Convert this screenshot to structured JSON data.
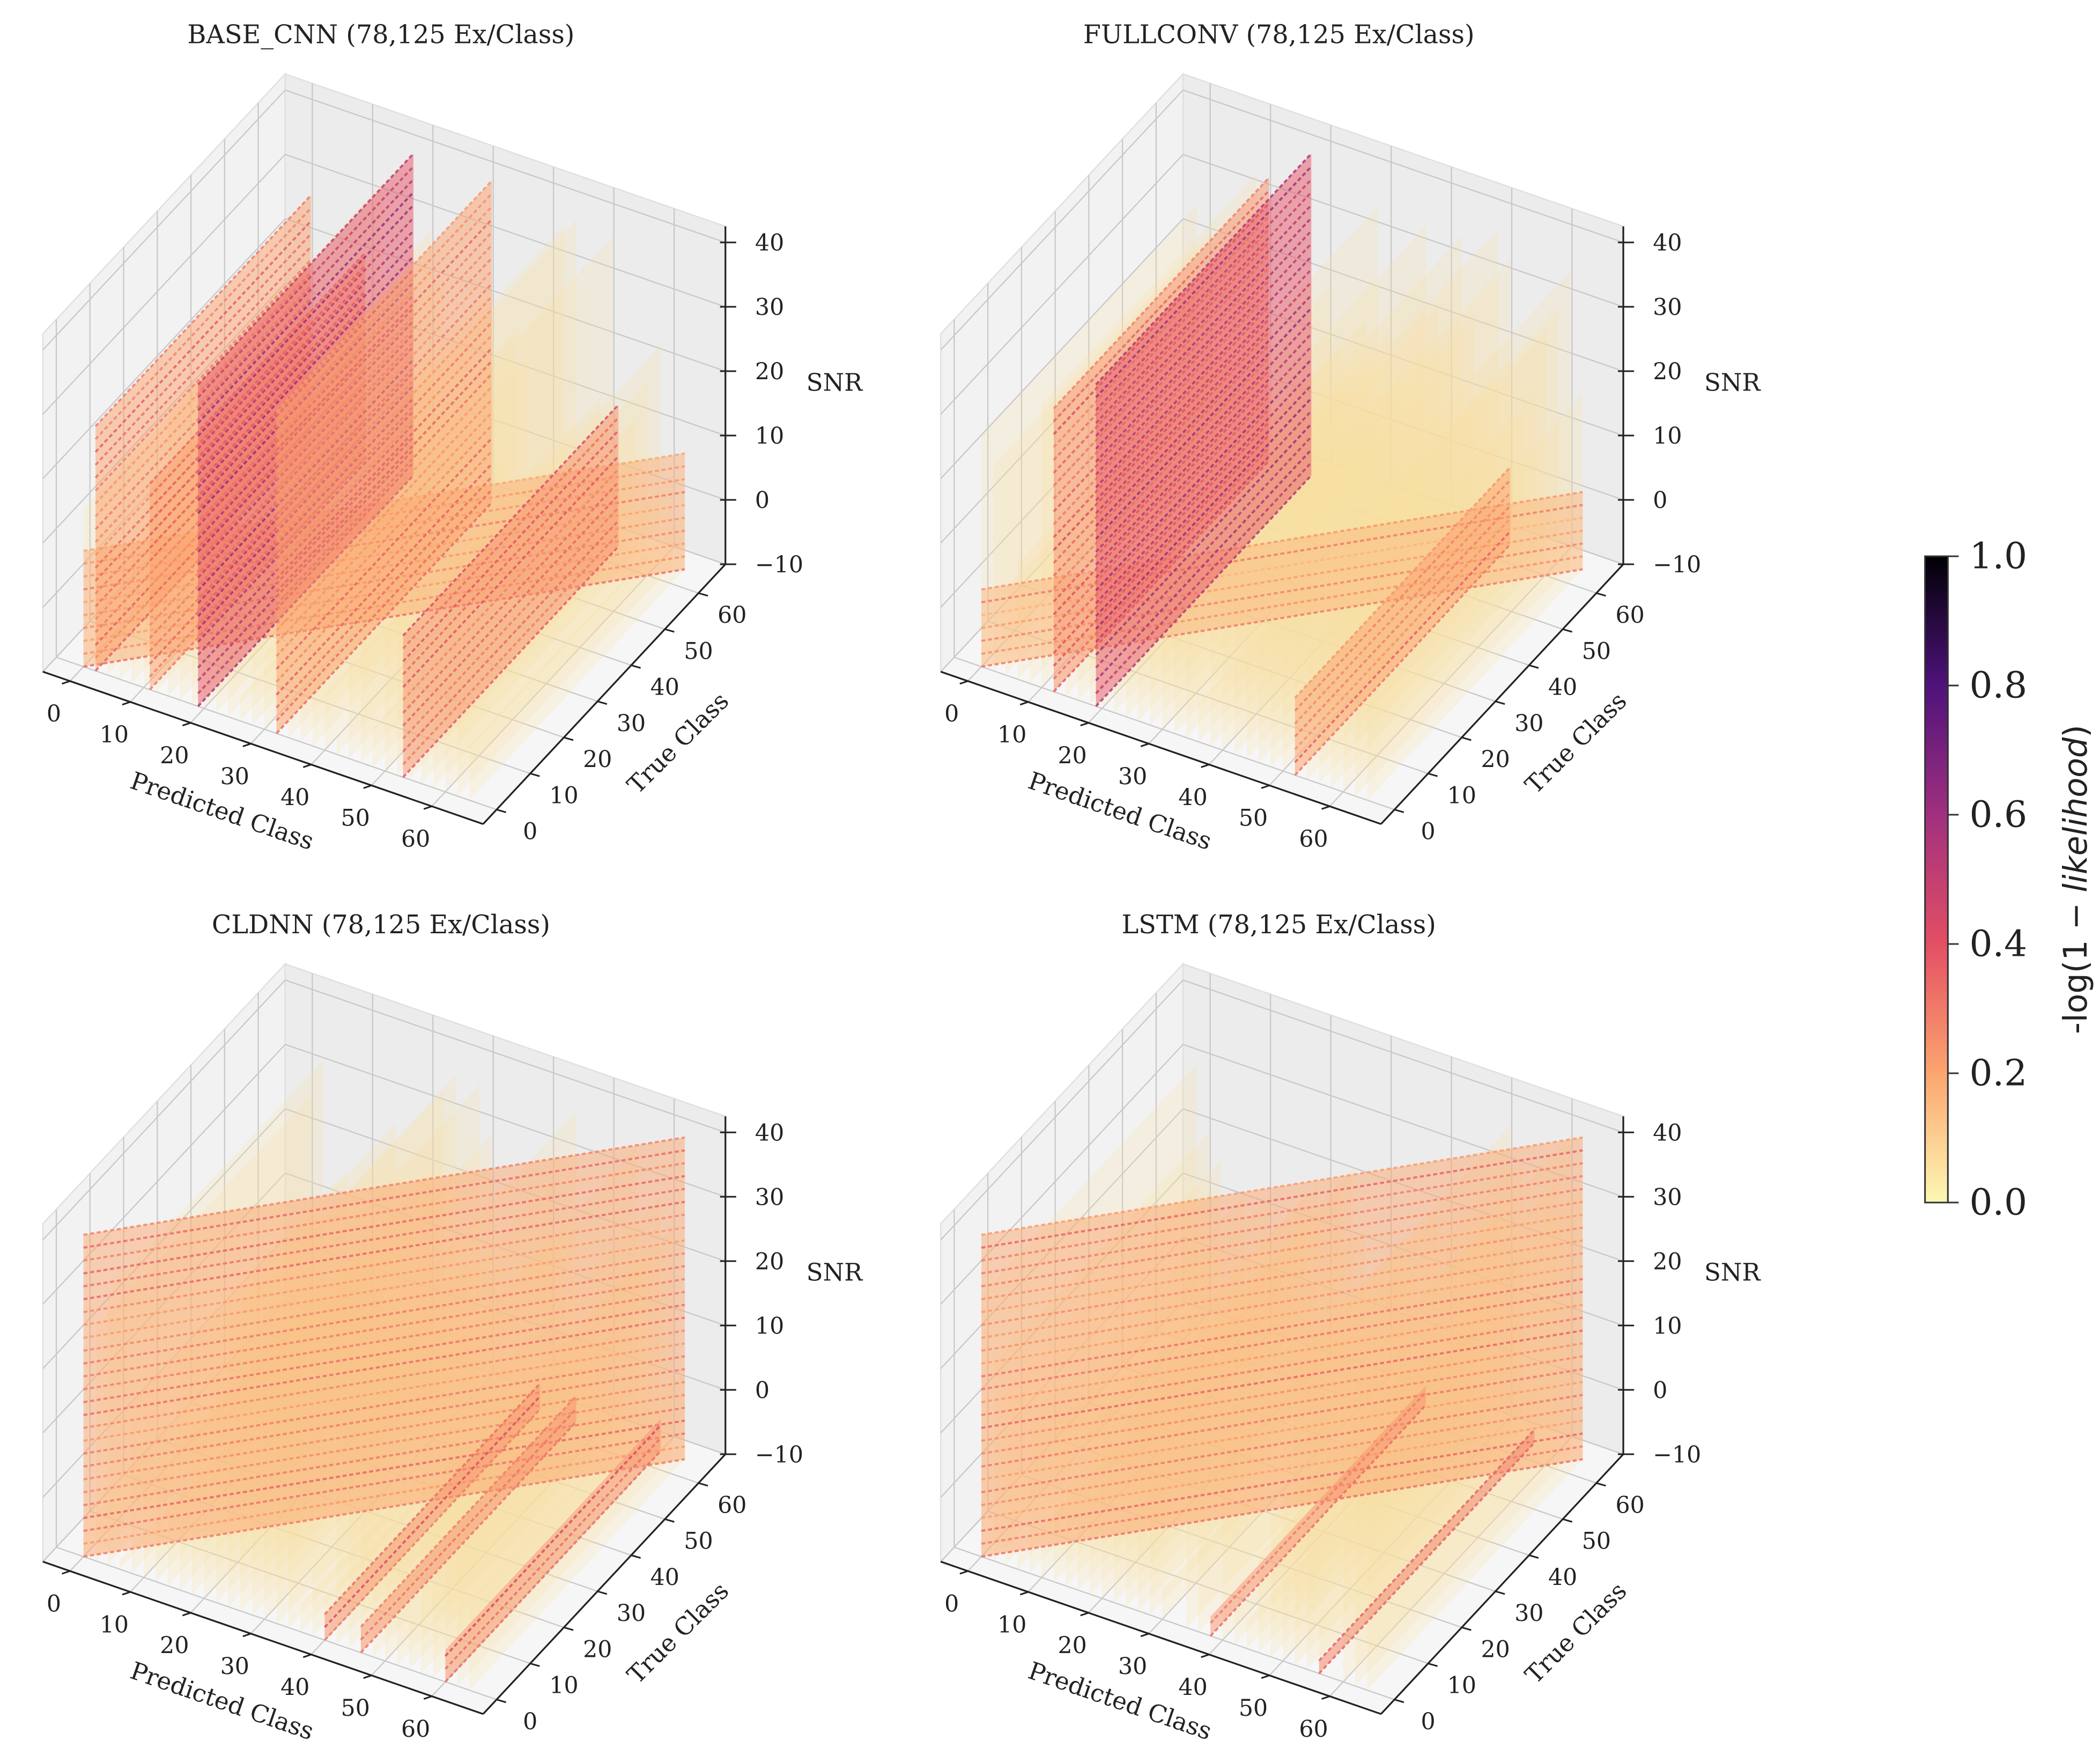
{
  "colorbar": {
    "label_prefix": "-log(1 − ",
    "label_italic": "likelihood",
    "label_suffix": ")",
    "ticks": [
      "0.0",
      "0.2",
      "0.4",
      "0.6",
      "0.8",
      "1.0"
    ],
    "range": [
      0,
      1
    ],
    "colormap": "magma_r",
    "colormap_stops": [
      "#fcf8b4",
      "#fca56f",
      "#e44f64",
      "#a0307e",
      "#4f127b",
      "#000004"
    ]
  },
  "chart_data": [
    {
      "type": "scatter3d",
      "title": "BASE_CNN (78,125 Ex/Class)",
      "xlabel": "Predicted Class",
      "ylabel": "True Class",
      "zlabel": "SNR",
      "xticks": [
        "0",
        "10",
        "20",
        "30",
        "40",
        "50",
        "60"
      ],
      "yticks": [
        "0",
        "10",
        "20",
        "30",
        "40",
        "50",
        "60"
      ],
      "zticks": [
        "−10",
        "0",
        "10",
        "20",
        "30",
        "40"
      ],
      "xlim": [
        0,
        64
      ],
      "ylim": [
        0,
        64
      ],
      "zlim": [
        -10,
        40
      ],
      "diagonal": {
        "snr_max": 8,
        "value": 0.25
      },
      "walls": [
        {
          "predicted_class": 2,
          "snr_max": 28,
          "value": 0.3
        },
        {
          "predicted_class": 11,
          "snr_max": 22,
          "value": 0.3
        },
        {
          "predicted_class": 19,
          "snr_max": 40,
          "value": 0.55
        },
        {
          "predicted_class": 32,
          "snr_max": 40,
          "value": 0.3
        },
        {
          "predicted_class": 53,
          "snr_max": 12,
          "value": 0.35
        }
      ]
    },
    {
      "type": "scatter3d",
      "title": "FULLCONV (78,125 Ex/Class)",
      "xlabel": "Predicted Class",
      "ylabel": "True Class",
      "zlabel": "SNR",
      "xticks": [
        "0",
        "10",
        "20",
        "30",
        "40",
        "50",
        "60"
      ],
      "yticks": [
        "0",
        "10",
        "20",
        "30",
        "40",
        "50",
        "60"
      ],
      "zticks": [
        "−10",
        "0",
        "10",
        "20",
        "30",
        "40"
      ],
      "xlim": [
        0,
        64
      ],
      "ylim": [
        0,
        64
      ],
      "zlim": [
        -10,
        40
      ],
      "diagonal": {
        "snr_max": 2,
        "value": 0.22
      },
      "walls": [
        {
          "predicted_class": 12,
          "snr_max": 34,
          "value": 0.35
        },
        {
          "predicted_class": 19,
          "snr_max": 40,
          "value": 0.55
        },
        {
          "predicted_class": 52,
          "snr_max": 2,
          "value": 0.3
        }
      ]
    },
    {
      "type": "scatter3d",
      "title": "CLDNN (78,125 Ex/Class)",
      "xlabel": "Predicted Class",
      "ylabel": "True Class",
      "zlabel": "SNR",
      "xticks": [
        "0",
        "10",
        "20",
        "30",
        "40",
        "50",
        "60"
      ],
      "yticks": [
        "0",
        "10",
        "20",
        "30",
        "40",
        "50",
        "60"
      ],
      "zticks": [
        "−10",
        "0",
        "10",
        "20",
        "30",
        "40"
      ],
      "xlim": [
        0,
        64
      ],
      "ylim": [
        0,
        64
      ],
      "zlim": [
        -10,
        40
      ],
      "diagonal": {
        "snr_max": 40,
        "value": 0.28
      },
      "walls": [
        {
          "predicted_class": 40,
          "snr_max": -6,
          "value": 0.35
        },
        {
          "predicted_class": 46,
          "snr_max": -6,
          "value": 0.35
        },
        {
          "predicted_class": 60,
          "snr_max": -5,
          "value": 0.35
        }
      ]
    },
    {
      "type": "scatter3d",
      "title": "LSTM (78,125 Ex/Class)",
      "xlabel": "Predicted Class",
      "ylabel": "True Class",
      "zlabel": "SNR",
      "xticks": [
        "0",
        "10",
        "20",
        "30",
        "40",
        "50",
        "60"
      ],
      "yticks": [
        "0",
        "10",
        "20",
        "30",
        "40",
        "50",
        "60"
      ],
      "zticks": [
        "−10",
        "0",
        "10",
        "20",
        "30",
        "40"
      ],
      "xlim": [
        0,
        64
      ],
      "ylim": [
        0,
        64
      ],
      "zlim": [
        -10,
        40
      ],
      "diagonal": {
        "snr_max": 40,
        "value": 0.28
      },
      "walls": [
        {
          "predicted_class": 38,
          "snr_max": -7,
          "value": 0.35
        },
        {
          "predicted_class": 56,
          "snr_max": -8,
          "value": 0.4
        }
      ]
    }
  ]
}
